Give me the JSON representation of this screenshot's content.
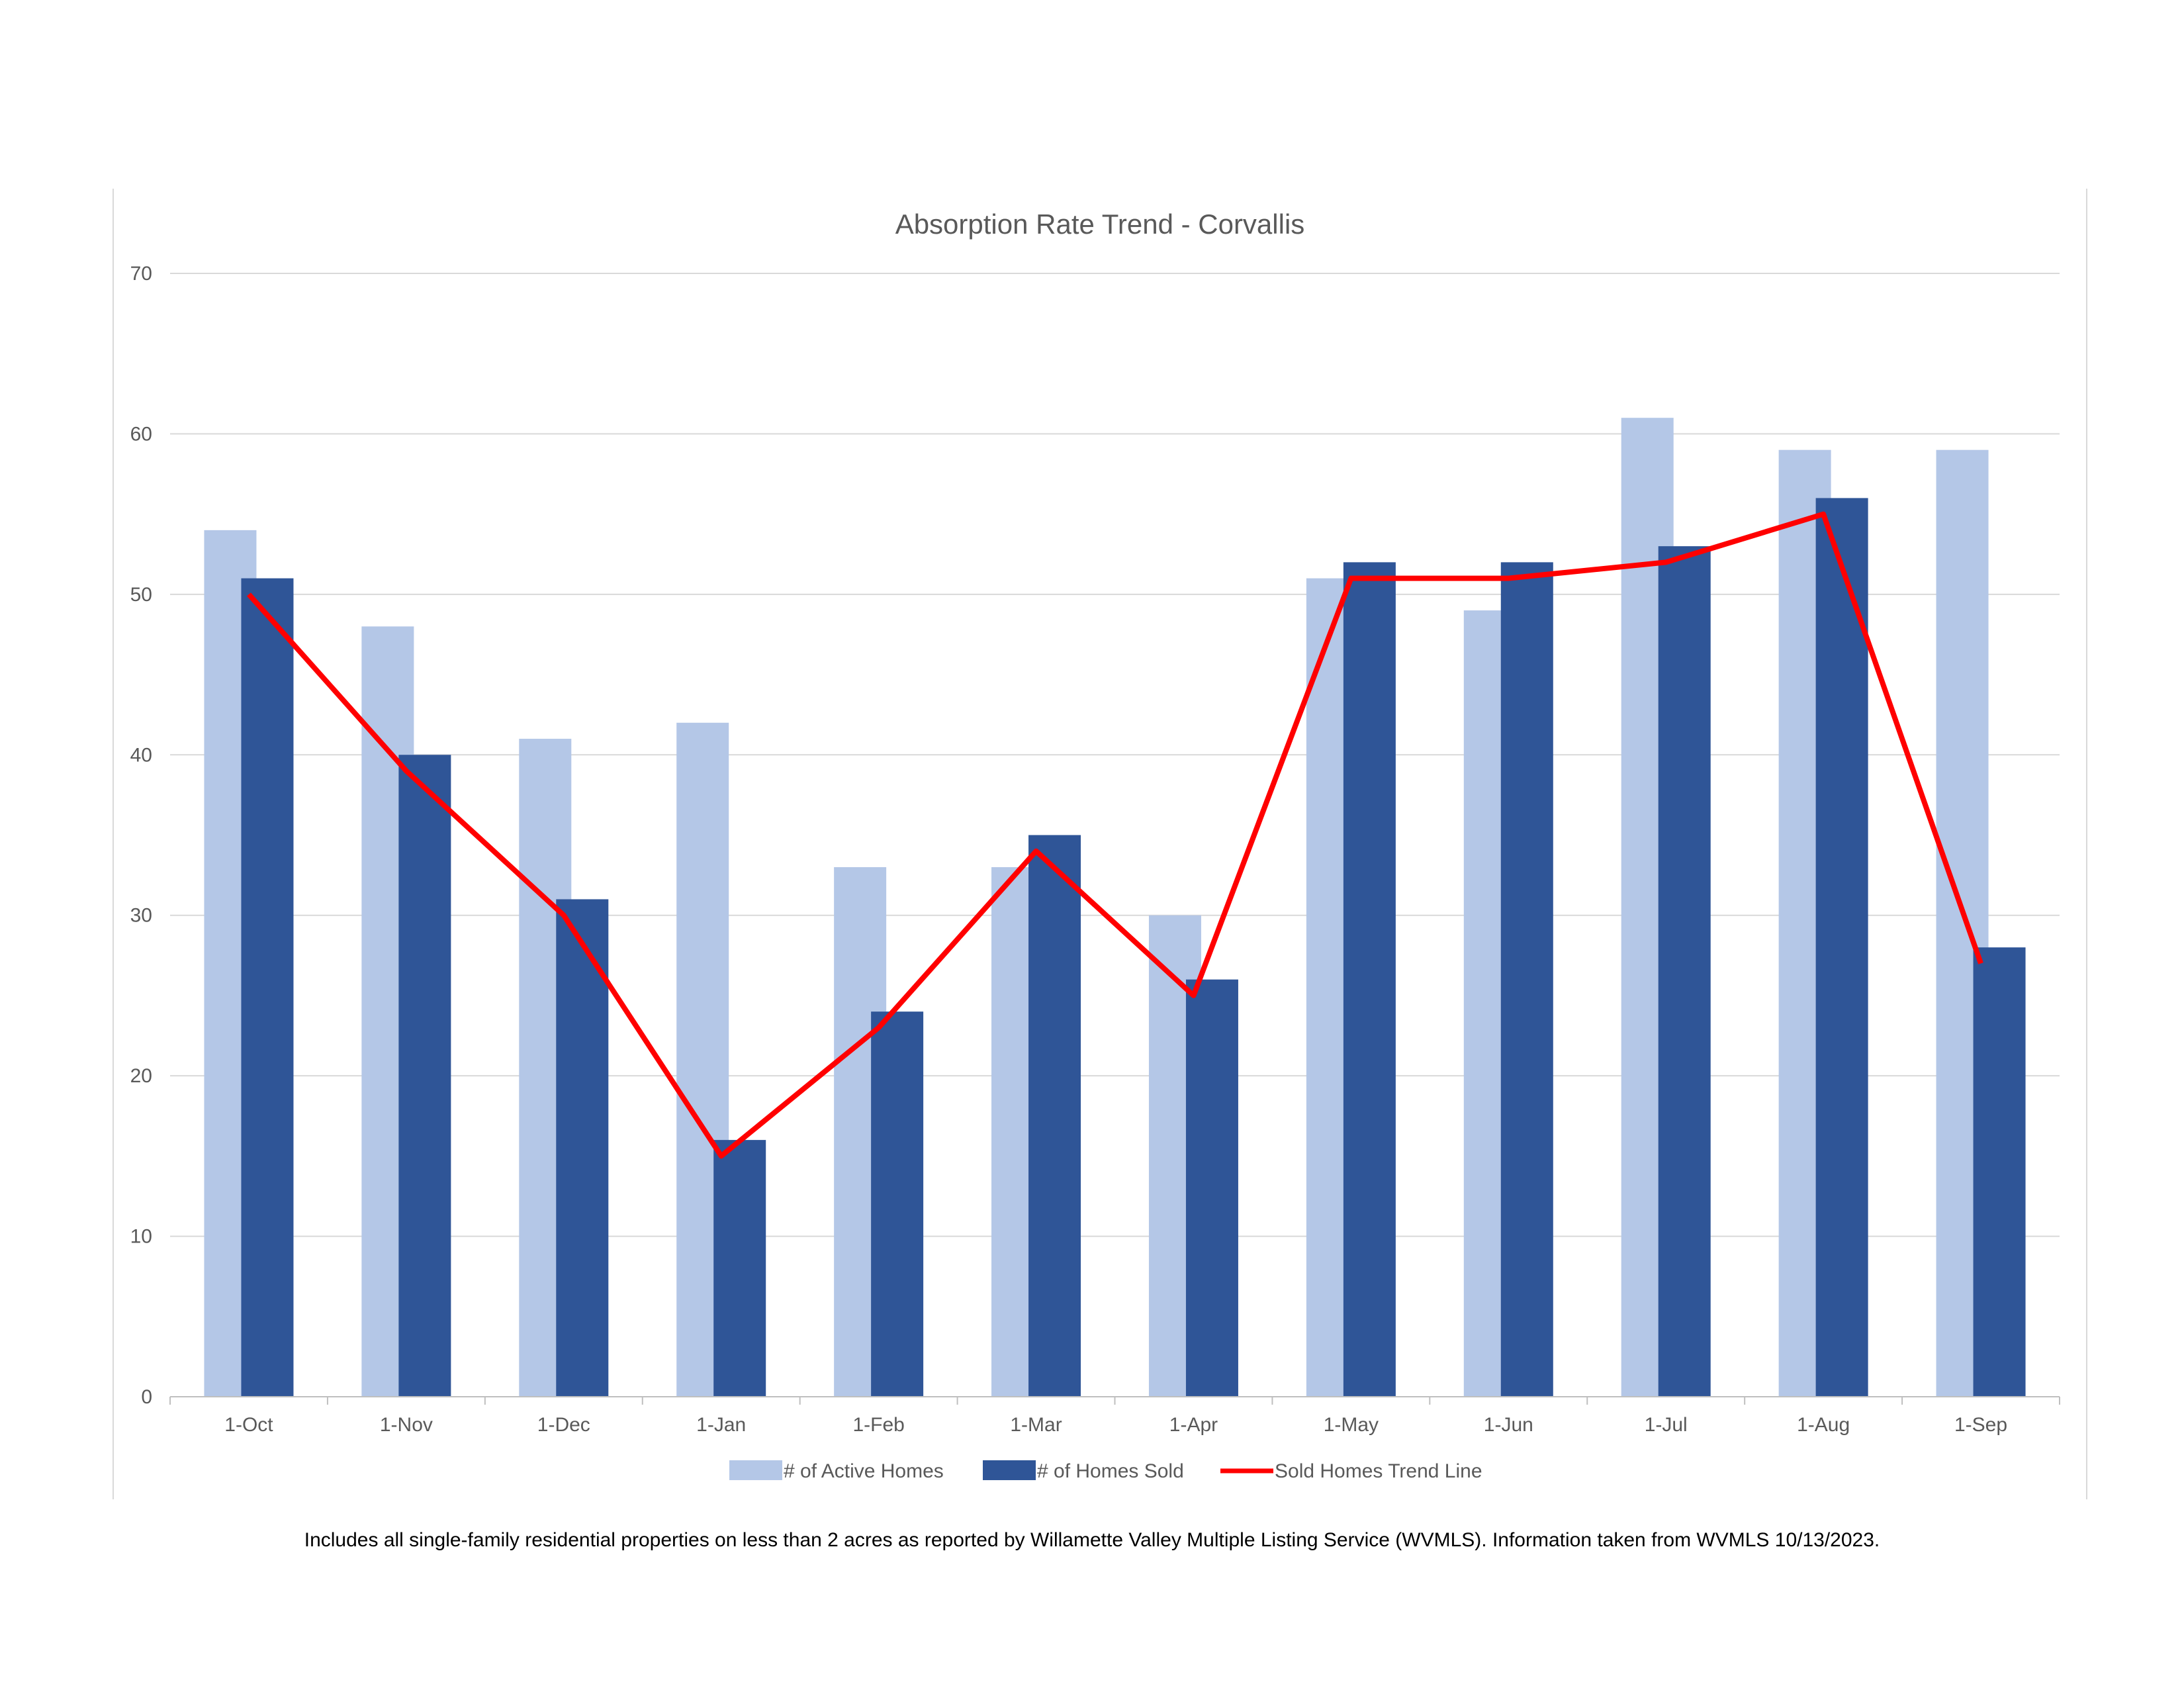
{
  "chart_data": {
    "type": "bar",
    "title": "Absorption Rate Trend - Corvallis",
    "categories": [
      "1-Oct",
      "1-Nov",
      "1-Dec",
      "1-Jan",
      "1-Feb",
      "1-Mar",
      "1-Apr",
      "1-May",
      "1-Jun",
      "1-Jul",
      "1-Aug",
      "1-Sep"
    ],
    "series": [
      {
        "name": "# of Active Homes",
        "type": "bar",
        "color": "#b4c7e7",
        "values": [
          54,
          48,
          41,
          42,
          33,
          33,
          30,
          51,
          49,
          61,
          59,
          59
        ]
      },
      {
        "name": "# of Homes Sold",
        "type": "bar",
        "color": "#2f5597",
        "values": [
          51,
          40,
          31,
          16,
          24,
          35,
          26,
          52,
          52,
          53,
          56,
          28
        ]
      },
      {
        "name": "Sold Homes Trend Line",
        "type": "line",
        "color": "#ff0000",
        "values": [
          50,
          39,
          30,
          15,
          23,
          34,
          25,
          51,
          51,
          52,
          55,
          27
        ]
      }
    ],
    "ylim": [
      0,
      70
    ],
    "yticks": [
      0,
      10,
      20,
      30,
      40,
      50,
      60,
      70
    ],
    "grid": true,
    "legend": "bottom"
  },
  "footnote": "Includes all single-family residential properties on less than 2 acres as reported by Willamette Valley Multiple Listing Service (WVMLS). Information taken from WVMLS 10/13/2023."
}
